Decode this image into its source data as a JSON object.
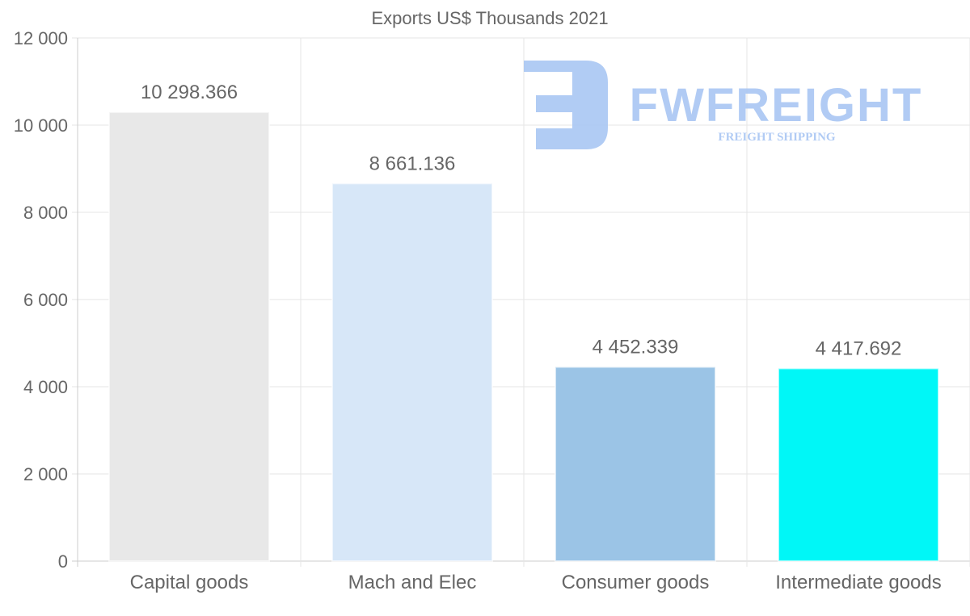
{
  "chart_data": {
    "type": "bar",
    "title": "Exports US$ Thousands 2021",
    "categories": [
      "Capital goods",
      "Mach and Elec",
      "Consumer goods",
      "Intermediate goods"
    ],
    "values": [
      10298.366,
      8661.136,
      4452.339,
      4417.692
    ],
    "value_labels": [
      "10 298.366",
      "8 661.136",
      "4 452.339",
      "4 417.692"
    ],
    "colors": [
      "#e8e8e8",
      "#d7e7f8",
      "#9bc4e6",
      "#00f7f7"
    ],
    "xlabel": "",
    "ylabel": "",
    "ylim": [
      0,
      12000
    ],
    "yticks": [
      0,
      2000,
      4000,
      6000,
      8000,
      10000,
      12000
    ],
    "ytick_labels": [
      "0",
      "2 000",
      "4 000",
      "6 000",
      "8 000",
      "10 000",
      "12 000"
    ],
    "grid": true,
    "legend": "none"
  },
  "watermark": {
    "brand": "FWFREIGHT",
    "tagline": "FREIGHT SHIPPING",
    "color": "#a9c6f3"
  }
}
